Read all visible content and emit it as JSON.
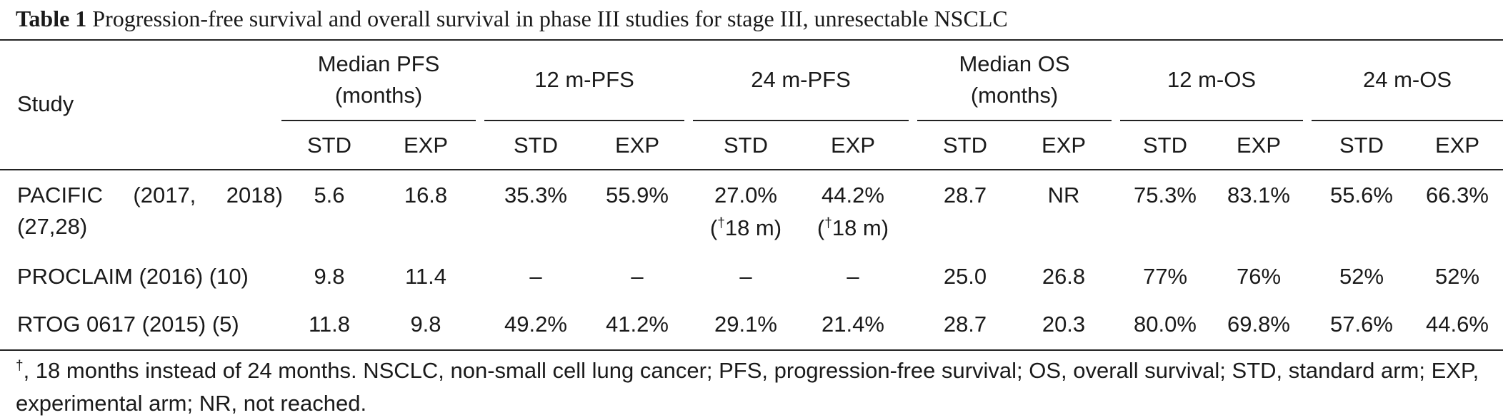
{
  "caption": {
    "label": "Table 1",
    "text": "Progression-free survival and overall survival in phase III studies for stage III, unresectable NSCLC"
  },
  "header": {
    "study": "Study",
    "groups": [
      {
        "line1": "Median PFS",
        "line2": "(months)"
      },
      {
        "line1": "12 m-PFS",
        "line2": ""
      },
      {
        "line1": "24 m-PFS",
        "line2": ""
      },
      {
        "line1": "Median OS",
        "line2": "(months)"
      },
      {
        "line1": "12 m-OS",
        "line2": ""
      },
      {
        "line1": "24 m-OS",
        "line2": ""
      }
    ],
    "sub_std": "STD",
    "sub_exp": "EXP"
  },
  "rows": [
    {
      "study_line1": "PACIFIC (2017, 2018)",
      "study_line2": "(27,28)",
      "values": [
        "5.6",
        "16.8",
        "35.3%",
        "55.9%",
        "27.0%",
        "44.2%",
        "28.7",
        "NR",
        "75.3%",
        "83.1%",
        "55.6%",
        "66.3%"
      ],
      "notes": {
        "col4": "18 m)",
        "col5": "18 m)"
      },
      "note_prefix": "(",
      "note_mark": "†"
    },
    {
      "study_line1": "PROCLAIM (2016) (10)",
      "values": [
        "9.8",
        "11.4",
        "–",
        "–",
        "–",
        "–",
        "25.0",
        "26.8",
        "77%",
        "76%",
        "52%",
        "52%"
      ]
    },
    {
      "study_line1": "RTOG 0617 (2015) (5)",
      "values": [
        "11.8",
        "9.8",
        "49.2%",
        "41.2%",
        "29.1%",
        "21.4%",
        "28.7",
        "20.3",
        "80.0%",
        "69.8%",
        "57.6%",
        "44.6%"
      ]
    }
  ],
  "footnote": {
    "mark": "†",
    "text": ", 18 months instead of 24 months. NSCLC, non-small cell lung cancer; PFS, progression-free survival; OS, overall survival; STD, standard arm; EXP, experimental arm; NR, not reached."
  }
}
